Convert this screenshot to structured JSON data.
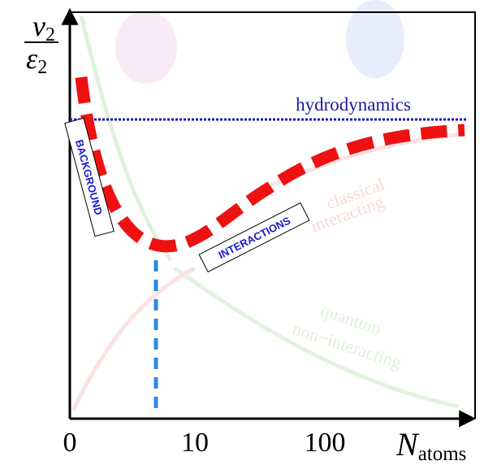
{
  "axes": {
    "y_label": {
      "numerator": "v",
      "numerator_sub": "2",
      "denominator": "ε",
      "denominator_sub": "2"
    },
    "x_label": {
      "base": "N",
      "sub": "atoms"
    },
    "x_ticks": [
      "0",
      "10",
      "100"
    ]
  },
  "labels": {
    "hydrodynamics": "hydrodynamics",
    "background": "BACKGROUND",
    "interactions": "INTERACTIONS",
    "classical": [
      "classical",
      "interacting"
    ],
    "quantum": [
      "quantum",
      "non−interacting"
    ]
  }
}
